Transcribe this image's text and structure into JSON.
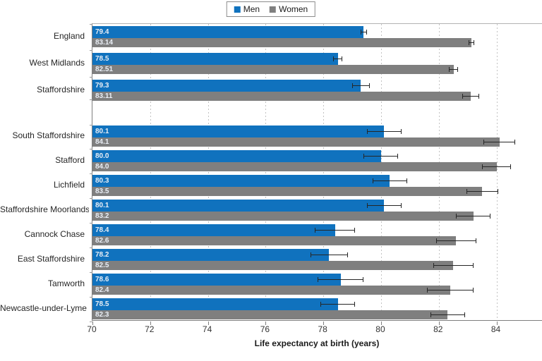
{
  "chart_data": {
    "type": "bar",
    "orientation": "horizontal",
    "title": "",
    "xlabel": "Life expectancy at birth (years)",
    "xlim": [
      70,
      85.6
    ],
    "xticks": [
      70,
      72,
      74,
      76,
      78,
      80,
      82,
      84
    ],
    "grid": "vertical-dashed",
    "legend_position": "top-center",
    "error_bars": true,
    "series_meta": [
      {
        "name": "Men",
        "color": "#1072be"
      },
      {
        "name": "Women",
        "color": "#7f7f7f"
      }
    ],
    "rows": [
      {
        "label": "England",
        "group": "region",
        "men": 79.4,
        "men_display": "79.4",
        "men_err": 0.1,
        "women": 83.14,
        "women_display": "83.14",
        "women_err": 0.1
      },
      {
        "label": "West Midlands",
        "group": "region",
        "men": 78.5,
        "men_display": "78.5",
        "men_err": 0.15,
        "women": 82.51,
        "women_display": "82.51",
        "women_err": 0.15
      },
      {
        "label": "Staffordshire",
        "group": "region",
        "men": 79.3,
        "men_display": "79.3",
        "men_err": 0.3,
        "women": 83.11,
        "women_display": "83.11",
        "women_err": 0.3
      },
      {
        "label": "South Staffordshire",
        "group": "district",
        "men": 80.1,
        "men_display": "80.1",
        "men_err": 0.6,
        "women": 84.1,
        "women_display": "84.1",
        "women_err": 0.55
      },
      {
        "label": "Stafford",
        "group": "district",
        "men": 80.0,
        "men_display": "80.0",
        "men_err": 0.6,
        "women": 84.0,
        "women_display": "84.0",
        "women_err": 0.5
      },
      {
        "label": "Lichfield",
        "group": "district",
        "men": 80.3,
        "men_display": "80.3",
        "men_err": 0.6,
        "women": 83.5,
        "women_display": "83.5",
        "women_err": 0.55
      },
      {
        "label": "Staffordshire Moorlands",
        "group": "district",
        "men": 80.1,
        "men_display": "80.1",
        "men_err": 0.6,
        "women": 83.2,
        "women_display": "83.2",
        "women_err": 0.6
      },
      {
        "label": "Cannock Chase",
        "group": "district",
        "men": 78.4,
        "men_display": "78.4",
        "men_err": 0.7,
        "women": 82.6,
        "women_display": "82.6",
        "women_err": 0.7
      },
      {
        "label": "East Staffordshire",
        "group": "district",
        "men": 78.2,
        "men_display": "78.2",
        "men_err": 0.65,
        "women": 82.5,
        "women_display": "82.5",
        "women_err": 0.7
      },
      {
        "label": "Tamworth",
        "group": "district",
        "men": 78.6,
        "men_display": "78.6",
        "men_err": 0.8,
        "women": 82.4,
        "women_display": "82.4",
        "women_err": 0.8
      },
      {
        "label": "Newcastle-under-Lyme",
        "group": "district",
        "men": 78.5,
        "men_display": "78.5",
        "men_err": 0.6,
        "women": 82.3,
        "women_display": "82.3",
        "women_err": 0.6
      }
    ]
  },
  "colors": {
    "men_bar": "#1072be",
    "women_bar": "#7f7f7f",
    "gridline": "#c2c2c2",
    "axis": "#7f7f7f",
    "plot_border": "#b3b3b3",
    "error_bar": "#262626",
    "bar_label_text": "#e9eef5"
  }
}
